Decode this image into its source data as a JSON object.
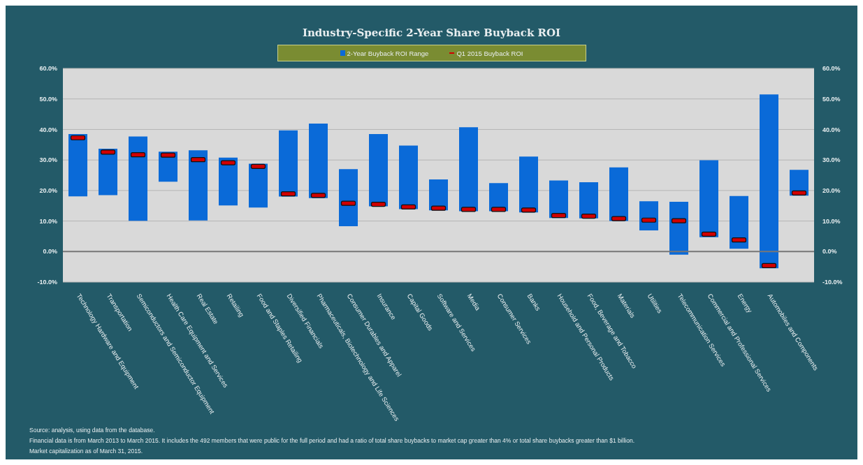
{
  "chart_data": {
    "type": "bar",
    "title": "Industry-Specific 2-Year Share Buyback ROI",
    "categories": [
      "Technology Hardware and Equipment",
      "Transportation",
      "Semiconductors and Semiconductor Equipment",
      "Health Care Equipment and Services",
      "Real Estate",
      "Retailing",
      "Food and Staples Retailing",
      "Diversified Financials",
      "Pharmaceuticals, Biotechnology and Life Sciences",
      "Consumer Durables and Apparel",
      "Insurance",
      "Capital Goods",
      "Software and Services",
      "Media",
      "Consumer Services",
      "Banks",
      "Household and Personal Products",
      "Food, Beverage and Tobacco",
      "Materials",
      "Utilities",
      "Telecommunication Services",
      "Commercial and Professional Services",
      "Energy",
      "Automobiles and Components",
      null
    ],
    "series": [
      {
        "name": "2-Year Buyback ROI Range",
        "color": "#0a6ad8",
        "base": [
          18.1,
          18.5,
          10.1,
          22.9,
          10.2,
          15.1,
          14.4,
          18.0,
          17.5,
          8.3,
          14.8,
          13.9,
          13.5,
          13.2,
          13.2,
          12.8,
          11.0,
          10.9,
          10.0,
          6.9,
          -1.0,
          4.7,
          0.9,
          -5.5,
          18.3
        ],
        "values": [
          20.4,
          15.2,
          27.6,
          9.8,
          23.0,
          15.7,
          14.4,
          21.7,
          24.4,
          18.7,
          23.7,
          20.8,
          10.1,
          27.5,
          9.2,
          18.3,
          12.3,
          11.8,
          17.6,
          9.6,
          17.3,
          25.2,
          17.3,
          57.0,
          8.5
        ]
      },
      {
        "type": "scatter",
        "name": "Q1 2015 Buyback ROI",
        "color": "#d00000",
        "values": [
          37.3,
          32.6,
          31.7,
          31.6,
          30.1,
          29.1,
          27.9,
          18.9,
          18.4,
          15.8,
          15.5,
          14.6,
          14.2,
          13.8,
          13.8,
          13.6,
          11.8,
          11.6,
          10.8,
          10.3,
          10.1,
          5.7,
          3.8,
          -4.6,
          19.2
        ]
      }
    ],
    "ylim": [
      -10,
      60
    ],
    "yticks": [
      {
        "value": -10,
        "label": "-10.0%"
      },
      {
        "value": 0,
        "label": "0.0%"
      },
      {
        "value": 10,
        "label": "10.0%"
      },
      {
        "value": 20,
        "label": "20.0%"
      },
      {
        "value": 30,
        "label": "30.0%"
      },
      {
        "value": 40,
        "label": "40.0%"
      },
      {
        "value": 50,
        "label": "50.0%"
      },
      {
        "value": 60,
        "label": "60.0%"
      }
    ],
    "y2lim": [
      -10,
      60
    ],
    "y2ticks": [
      {
        "value": -10,
        "label": "-10.0%"
      },
      {
        "value": 0,
        "label": "0.0%"
      },
      {
        "value": 10,
        "label": "10.0%"
      },
      {
        "value": 20,
        "label": "20.0%"
      },
      {
        "value": 30,
        "label": "30.0%"
      },
      {
        "value": 40,
        "label": "40.0%"
      },
      {
        "value": 50,
        "label": "50.0%"
      },
      {
        "value": 60,
        "label": "60.0%"
      }
    ],
    "grid": "y",
    "legend": "top",
    "annotations": [
      "Source: analysis, using data from the database.",
      "Financial data is from March 2013 to March 2015. It includes the 492 members that were public for the full period and had a ratio of total share buybacks to market cap greater than 4% or total share buybacks greater than $1 billion.",
      "Market capitalization as of March 31, 2015."
    ]
  }
}
